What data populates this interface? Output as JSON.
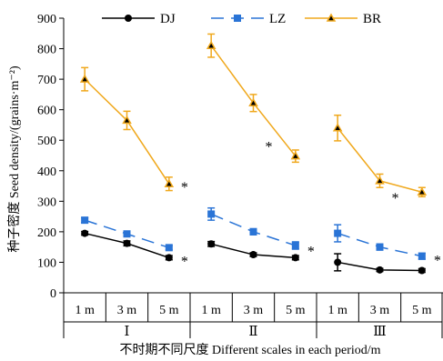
{
  "chart_data": {
    "type": "line",
    "ylabel": "种子密度 Seed density/(grains·m⁻²)",
    "xlabel": "不时期不同尺度 Different scales  in each period/m",
    "ylim": [
      0,
      900
    ],
    "yticks": [
      0,
      100,
      200,
      300,
      400,
      500,
      600,
      700,
      800,
      900
    ],
    "legend_position": "top",
    "groups": [
      {
        "label": "Ⅰ",
        "categories": [
          "1 m",
          "3 m",
          "5 m"
        ]
      },
      {
        "label": "Ⅱ",
        "categories": [
          "1 m",
          "3 m",
          "5 m"
        ]
      },
      {
        "label": "Ⅲ",
        "categories": [
          "1 m",
          "3 m",
          "5 m"
        ]
      }
    ],
    "series": [
      {
        "name": "DJ",
        "color": "#000000",
        "marker": "circle",
        "dash": "solid",
        "groups": [
          {
            "values": [
              195,
              162,
              115
            ],
            "errors": [
              6,
              8,
              7
            ]
          },
          {
            "values": [
              160,
              125,
              115
            ],
            "errors": [
              8,
              6,
              7
            ]
          },
          {
            "values": [
              100,
              75,
              73
            ],
            "errors": [
              28,
              5,
              6
            ]
          }
        ]
      },
      {
        "name": "LZ",
        "color": "#2a74d6",
        "marker": "square",
        "dash": "dashed",
        "groups": [
          {
            "values": [
              238,
              193,
              148
            ],
            "errors": [
              8,
              8,
              7
            ]
          },
          {
            "values": [
              258,
              200,
              155
            ],
            "errors": [
              20,
              10,
              12
            ]
          },
          {
            "values": [
              195,
              150,
              120
            ],
            "errors": [
              28,
              10,
              10
            ]
          }
        ]
      },
      {
        "name": "BR",
        "color": "#f0a81c",
        "marker": "triangle",
        "dash": "solid",
        "groups": [
          {
            "values": [
              700,
              565,
              357
            ],
            "errors": [
              38,
              30,
              22
            ]
          },
          {
            "values": [
              810,
              622,
              448
            ],
            "errors": [
              38,
              28,
              20
            ]
          },
          {
            "values": [
              540,
              367,
              330
            ],
            "errors": [
              42,
              22,
              15
            ]
          }
        ]
      }
    ],
    "annotations": [
      {
        "text": "*",
        "group": 0,
        "category": 2,
        "near_value": 357
      },
      {
        "text": "*",
        "group": 0,
        "category": 2,
        "near_value": 115
      },
      {
        "text": "*",
        "group": 1,
        "category": 1,
        "near_value": 490
      },
      {
        "text": "*",
        "group": 1,
        "category": 2,
        "near_value": 148
      },
      {
        "text": "*",
        "group": 2,
        "category": 1,
        "near_value": 322
      },
      {
        "text": "*",
        "group": 2,
        "category": 2,
        "near_value": 118
      }
    ]
  }
}
